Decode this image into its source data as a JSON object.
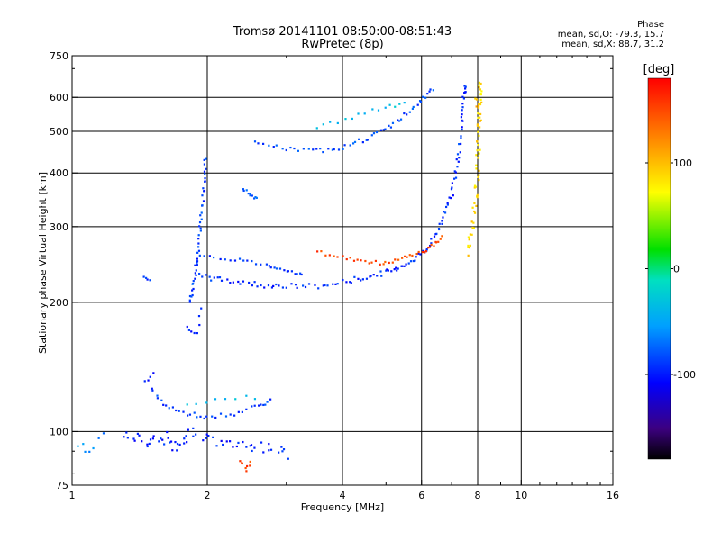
{
  "header": {
    "title_line1": "Tromsø 20141101 08:50:00-08:51:43",
    "title_line2": "RwPretec (8p)"
  },
  "phase_box": {
    "heading": "Phase",
    "line_o": "mean, sd,O: -79.3, 15.7",
    "line_x": "mean, sd,X:  88.7, 31.2"
  },
  "chart_data": {
    "type": "scatter",
    "xlabel": "Frequency [MHz]",
    "ylabel": "Stationary phase Virtual Height [km]",
    "x_scale": "log",
    "y_scale": "log",
    "xlim": [
      1,
      16
    ],
    "ylim": [
      75,
      750
    ],
    "x_ticks": [
      1,
      2,
      4,
      6,
      8,
      10,
      16
    ],
    "x_tick_labels": [
      "1",
      "2",
      "4",
      "6",
      "8",
      "10",
      "16"
    ],
    "y_ticks": [
      75,
      100,
      200,
      300,
      400,
      500,
      600,
      750
    ],
    "y_tick_labels": [
      "75",
      "100",
      "200",
      "300",
      "400",
      "500",
      "600",
      "750"
    ],
    "grid": true,
    "colorbar": {
      "label": "[deg]",
      "range": [
        -180,
        180
      ],
      "ticks": [
        100,
        0,
        -100
      ],
      "tick_labels": [
        "100",
        "0",
        "-100"
      ]
    },
    "traces": [
      {
        "points": [
          [
            1.83,
            200
          ],
          [
            1.86,
            215
          ],
          [
            1.88,
            235
          ],
          [
            1.9,
            255
          ],
          [
            1.92,
            285
          ],
          [
            1.94,
            320
          ],
          [
            1.96,
            360
          ],
          [
            1.98,
            400
          ],
          [
            1.98,
            440
          ]
        ],
        "phase": -90,
        "spread": 0.012,
        "n": 6
      },
      {
        "points": [
          [
            1.8,
            175
          ],
          [
            1.9,
            170
          ],
          [
            1.95,
            200
          ]
        ],
        "phase": -100,
        "spread": 0.01,
        "n": 4
      },
      {
        "points": [
          [
            1.92,
            230
          ],
          [
            2.2,
            225
          ],
          [
            2.6,
            220
          ],
          [
            3,
            218
          ],
          [
            3.6,
            218
          ],
          [
            4.2,
            225
          ],
          [
            4.8,
            232
          ],
          [
            5.3,
            240
          ],
          [
            5.8,
            252
          ],
          [
            6.3,
            275
          ],
          [
            6.7,
            310
          ],
          [
            7,
            360
          ],
          [
            7.2,
            420
          ],
          [
            7.35,
            500
          ],
          [
            7.45,
            600
          ],
          [
            7.5,
            640
          ]
        ],
        "phase": -95,
        "spread": 0.015,
        "n": 9
      },
      {
        "points": [
          [
            1.92,
            255
          ],
          [
            2.3,
            252
          ],
          [
            2.7,
            245
          ],
          [
            3,
            238
          ],
          [
            3.3,
            230
          ]
        ],
        "phase": -90,
        "spread": 0.01,
        "n": 7
      },
      {
        "points": [
          [
            3.5,
            262
          ],
          [
            4,
            255
          ],
          [
            4.5,
            248
          ],
          [
            5,
            247
          ],
          [
            5.5,
            255
          ],
          [
            6,
            262
          ],
          [
            6.4,
            272
          ],
          [
            6.7,
            285
          ]
        ],
        "phase": 150,
        "spread": 0.01,
        "n": 6
      },
      {
        "points": [
          [
            2.55,
            470
          ],
          [
            3,
            455
          ],
          [
            3.5,
            450
          ],
          [
            4,
            460
          ],
          [
            4.5,
            480
          ],
          [
            5,
            505
          ],
          [
            5.5,
            545
          ],
          [
            6,
            590
          ],
          [
            6.4,
            635
          ]
        ],
        "phase": -85,
        "spread": 0.012,
        "n": 7
      },
      {
        "points": [
          [
            3.5,
            510
          ],
          [
            4.2,
            540
          ],
          [
            5,
            570
          ],
          [
            5.6,
            580
          ]
        ],
        "phase": -35,
        "spread": 0.01,
        "n": 5
      },
      {
        "points": [
          [
            7.6,
            260
          ],
          [
            7.8,
            300
          ],
          [
            7.95,
            360
          ],
          [
            8,
            420
          ],
          [
            8.05,
            500
          ],
          [
            8.08,
            600
          ],
          [
            8.1,
            660
          ]
        ],
        "phase": 85,
        "spread": 0.02,
        "n": 10
      },
      {
        "points": [
          [
            7.9,
            600
          ],
          [
            8.05,
            560
          ],
          [
            8.2,
            520
          ]
        ],
        "phase": 100,
        "spread": 0.015,
        "n": 4
      },
      {
        "points": [
          [
            1.5,
            125
          ],
          [
            1.62,
            115
          ],
          [
            1.8,
            110
          ],
          [
            2,
            108
          ],
          [
            2.3,
            110
          ],
          [
            2.6,
            115
          ],
          [
            2.8,
            118
          ]
        ],
        "phase": -90,
        "spread": 0.012,
        "n": 6
      },
      {
        "points": [
          [
            1.8,
            115
          ],
          [
            2.2,
            120
          ],
          [
            2.7,
            120
          ]
        ],
        "phase": -40,
        "spread": 0.01,
        "n": 4
      },
      {
        "points": [
          [
            1.3,
            100
          ],
          [
            1.45,
            95
          ],
          [
            1.6,
            98
          ],
          [
            1.7,
            90
          ],
          [
            1.85,
            100
          ],
          [
            2.1,
            95
          ],
          [
            2.4,
            93
          ],
          [
            2.7,
            92
          ],
          [
            3.1,
            88
          ]
        ],
        "phase": -100,
        "spread": 0.03,
        "n": 8
      },
      {
        "points": [
          [
            1,
            95
          ],
          [
            1.1,
            90
          ],
          [
            1.2,
            100
          ]
        ],
        "phase": -60,
        "spread": 0.02,
        "n": 4
      },
      {
        "points": [
          [
            2.35,
            85
          ],
          [
            2.45,
            82
          ],
          [
            2.5,
            85
          ]
        ],
        "phase": 150,
        "spread": 0.015,
        "n": 4
      },
      {
        "points": [
          [
            1.45,
            230
          ],
          [
            1.5,
            225
          ]
        ],
        "phase": -95,
        "spread": 0.008,
        "n": 4
      },
      {
        "points": [
          [
            2.4,
            370
          ],
          [
            2.5,
            355
          ],
          [
            2.6,
            345
          ]
        ],
        "phase": -80,
        "spread": 0.01,
        "n": 5
      },
      {
        "points": [
          [
            1.45,
            130
          ],
          [
            1.55,
            140
          ]
        ],
        "phase": -110,
        "spread": 0.01,
        "n": 4
      }
    ]
  }
}
